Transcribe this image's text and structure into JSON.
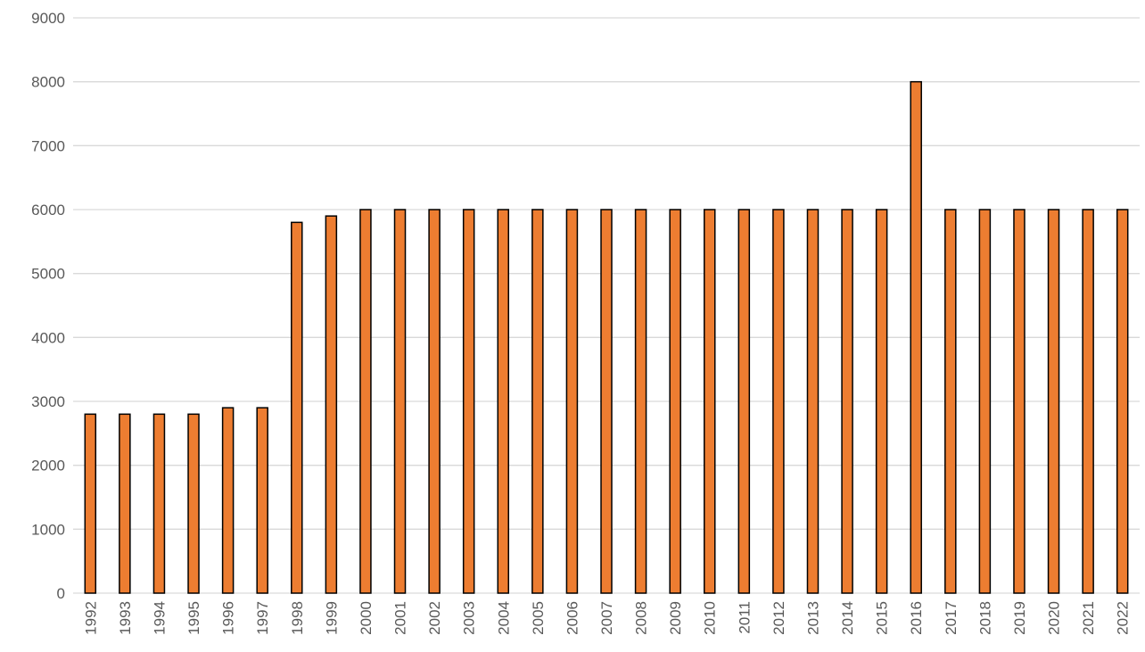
{
  "chart_data": {
    "type": "bar",
    "title": "",
    "xlabel": "",
    "ylabel": "",
    "categories": [
      "1992",
      "1993",
      "1994",
      "1995",
      "1996",
      "1997",
      "1998",
      "1999",
      "2000",
      "2001",
      "2002",
      "2003",
      "2004",
      "2005",
      "2006",
      "2007",
      "2008",
      "2009",
      "2010",
      "2011",
      "2012",
      "2013",
      "2014",
      "2015",
      "2016",
      "2017",
      "2018",
      "2019",
      "2020",
      "2021",
      "2022"
    ],
    "values": [
      2800,
      2800,
      2800,
      2800,
      2900,
      2900,
      5800,
      5900,
      6000,
      6000,
      6000,
      6000,
      6000,
      6000,
      6000,
      6000,
      6000,
      6000,
      6000,
      6000,
      6000,
      6000,
      6000,
      6000,
      8000,
      6000,
      6000,
      6000,
      6000,
      6000,
      6000
    ],
    "ylim": [
      0,
      9000
    ],
    "yticks": [
      "0",
      "1000",
      "2000",
      "3000",
      "4000",
      "5000",
      "6000",
      "7000",
      "8000",
      "9000"
    ],
    "grid": true,
    "legend": "none",
    "colors": {
      "bar_fill": "#ED7D31",
      "bar_stroke": "#000000",
      "grid": "#D9D9D9",
      "tick_text": "#595959"
    }
  }
}
